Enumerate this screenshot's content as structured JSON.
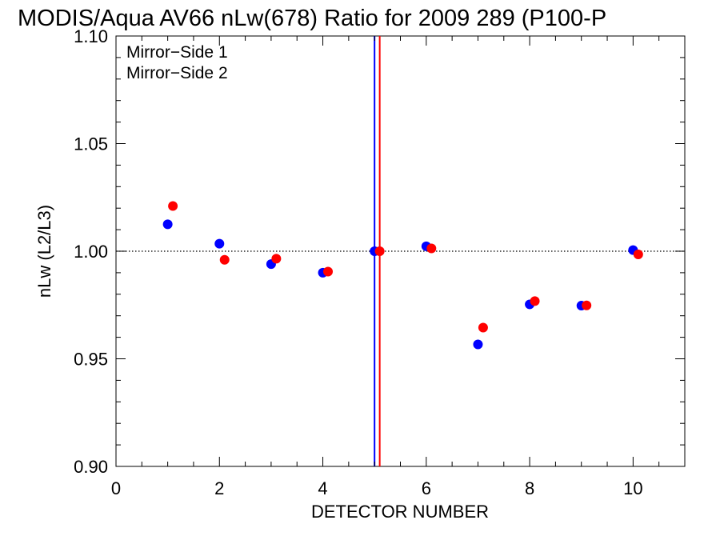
{
  "chart_data": {
    "type": "scatter",
    "title": "MODIS/Aqua AV66 nLw(678) Ratio for 2009 289 (P100-P",
    "xlabel": "DETECTOR NUMBER",
    "ylabel": "nLw (L2/L3)",
    "xlim": [
      0,
      11
    ],
    "ylim": [
      0.9,
      1.1
    ],
    "x_ticks": [
      0,
      2,
      4,
      6,
      8,
      10
    ],
    "x_tick_labels": [
      "0",
      "2",
      "4",
      "6",
      "8",
      "10"
    ],
    "y_ticks": [
      0.9,
      0.95,
      1.0,
      1.05,
      1.1
    ],
    "y_tick_labels": [
      "0.90",
      "0.95",
      "1.00",
      "1.05",
      "1.10"
    ],
    "reference_line_y": 1.0,
    "vertical_lines": [
      {
        "x": 5.0,
        "color": "#0000ff"
      },
      {
        "x": 5.1,
        "color": "#ff0000"
      }
    ],
    "legend_position": "top-left",
    "series": [
      {
        "name": "Mirror−Side 1",
        "color": "#0000ff",
        "x": [
          1,
          2,
          3,
          4,
          5,
          6,
          7,
          8,
          9,
          10
        ],
        "y": [
          1.0125,
          1.0035,
          0.994,
          0.99,
          1.0,
          1.0023,
          0.9567,
          0.9753,
          0.9747,
          1.0005
        ]
      },
      {
        "name": "Mirror−Side 2",
        "color": "#ff0000",
        "x": [
          1.1,
          2.1,
          3.1,
          4.1,
          5.1,
          6.1,
          7.1,
          8.1,
          9.1,
          10.1
        ],
        "y": [
          1.021,
          0.996,
          0.9965,
          0.9905,
          1.0,
          1.0013,
          0.9645,
          0.9768,
          0.9748,
          0.9985
        ]
      }
    ]
  }
}
